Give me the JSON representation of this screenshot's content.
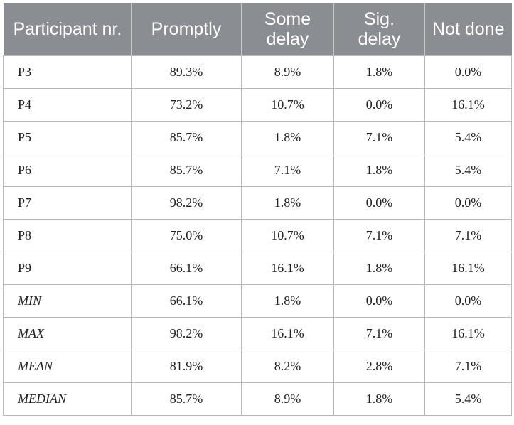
{
  "table": {
    "headers": [
      "Participant nr.",
      "Promptly",
      "Some delay",
      "Sig. delay",
      "Not done"
    ],
    "rows": [
      [
        "P3",
        "89.3%",
        "8.9%",
        "1.8%",
        "0.0%"
      ],
      [
        "P4",
        "73.2%",
        "10.7%",
        "0.0%",
        "16.1%"
      ],
      [
        "P5",
        "85.7%",
        "1.8%",
        "7.1%",
        "5.4%"
      ],
      [
        "P6",
        "85.7%",
        "7.1%",
        "1.8%",
        "5.4%"
      ],
      [
        "P7",
        "98.2%",
        "1.8%",
        "0.0%",
        "0.0%"
      ],
      [
        "P8",
        "75.0%",
        "10.7%",
        "7.1%",
        "7.1%"
      ],
      [
        "P9",
        "66.1%",
        "16.1%",
        "1.8%",
        "16.1%"
      ],
      [
        "MIN",
        "66.1%",
        "1.8%",
        "0.0%",
        "0.0%"
      ],
      [
        "MAX",
        "98.2%",
        "16.1%",
        "7.1%",
        "16.1%"
      ],
      [
        "MEAN",
        "81.9%",
        "8.2%",
        "2.8%",
        "7.1%"
      ],
      [
        "MEDIAN",
        "85.7%",
        "8.9%",
        "1.8%",
        "5.4%"
      ]
    ]
  }
}
